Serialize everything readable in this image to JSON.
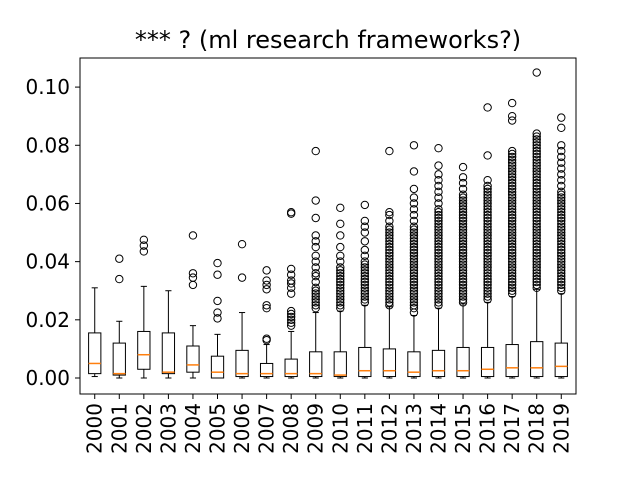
{
  "chart_data": {
    "type": "box",
    "title": "*** ? (ml research frameworks?)",
    "xlabel": "",
    "ylabel": "",
    "ylim": [
      -0.0055,
      0.11
    ],
    "yticks": [
      "0.00",
      "0.02",
      "0.04",
      "0.06",
      "0.08",
      "0.10"
    ],
    "ytick_values": [
      0.0,
      0.02,
      0.04,
      0.06,
      0.08,
      0.1
    ],
    "grid": false,
    "colors": {
      "box": "#000000",
      "median": "#ff7f0e",
      "flier": "#000000"
    },
    "categories": [
      "2000",
      "2001",
      "2002",
      "2003",
      "2004",
      "2005",
      "2006",
      "2007",
      "2008",
      "2009",
      "2010",
      "2011",
      "2012",
      "2013",
      "2014",
      "2015",
      "2016",
      "2017",
      "2018",
      "2019"
    ],
    "boxes": [
      {
        "year": "2000",
        "whislo": 0.0005,
        "q1": 0.0015,
        "med": 0.005,
        "q3": 0.0155,
        "whishi": 0.031,
        "fliers": []
      },
      {
        "year": "2001",
        "whislo": 0.0,
        "q1": 0.001,
        "med": 0.0015,
        "q3": 0.012,
        "whishi": 0.0195,
        "fliers": [
          0.034,
          0.041
        ]
      },
      {
        "year": "2002",
        "whislo": 0.0,
        "q1": 0.003,
        "med": 0.008,
        "q3": 0.016,
        "whishi": 0.0315,
        "fliers": [
          0.0435,
          0.0455,
          0.0475
        ]
      },
      {
        "year": "2003",
        "whislo": 0.0,
        "q1": 0.0015,
        "med": 0.002,
        "q3": 0.0155,
        "whishi": 0.03,
        "fliers": []
      },
      {
        "year": "2004",
        "whislo": 0.0,
        "q1": 0.002,
        "med": 0.0045,
        "q3": 0.011,
        "whishi": 0.018,
        "fliers": [
          0.032,
          0.0345,
          0.036,
          0.049
        ]
      },
      {
        "year": "2005",
        "whislo": 0.0,
        "q1": 0.0,
        "med": 0.002,
        "q3": 0.0075,
        "whishi": 0.015,
        "fliers": [
          0.0205,
          0.0225,
          0.0265,
          0.0355,
          0.0395
        ]
      },
      {
        "year": "2006",
        "whislo": 0.0,
        "q1": 0.0005,
        "med": 0.0015,
        "q3": 0.0095,
        "whishi": 0.0225,
        "fliers": [
          0.0345,
          0.046
        ]
      },
      {
        "year": "2007",
        "whislo": 0.0,
        "q1": 0.0005,
        "med": 0.0015,
        "q3": 0.005,
        "whishi": 0.0115,
        "fliers": [
          0.013,
          0.0135,
          0.024,
          0.025,
          0.0305,
          0.032,
          0.0335,
          0.037
        ]
      },
      {
        "year": "2008",
        "whislo": 0.0,
        "q1": 0.0005,
        "med": 0.0015,
        "q3": 0.0065,
        "whishi": 0.016,
        "fliers": [
          0.018,
          0.019,
          0.02,
          0.021,
          0.022,
          0.023,
          0.029,
          0.031,
          0.0325,
          0.0335,
          0.0355,
          0.0375,
          0.0565,
          0.057
        ]
      },
      {
        "year": "2009",
        "whislo": 0.0,
        "q1": 0.0005,
        "med": 0.0015,
        "q3": 0.009,
        "whishi": 0.0225,
        "fliers": [
          0.024,
          0.025,
          0.026,
          0.027,
          0.028,
          0.029,
          0.03,
          0.031,
          0.033,
          0.035,
          0.036,
          0.038,
          0.04,
          0.042,
          0.045,
          0.047,
          0.049,
          0.055,
          0.061,
          0.078
        ]
      },
      {
        "year": "2010",
        "whislo": 0.0,
        "q1": 0.0005,
        "med": 0.001,
        "q3": 0.009,
        "whishi": 0.023,
        "fliers": [
          0.024,
          0.025,
          0.026,
          0.027,
          0.028,
          0.029,
          0.03,
          0.031,
          0.032,
          0.033,
          0.034,
          0.035,
          0.036,
          0.037,
          0.038,
          0.04,
          0.042,
          0.045,
          0.049,
          0.053,
          0.0585
        ]
      },
      {
        "year": "2011",
        "whislo": 0.0,
        "q1": 0.0005,
        "med": 0.0025,
        "q3": 0.0105,
        "whishi": 0.025,
        "fliers": [
          0.026,
          0.027,
          0.028,
          0.029,
          0.03,
          0.031,
          0.032,
          0.033,
          0.034,
          0.035,
          0.036,
          0.037,
          0.038,
          0.039,
          0.04,
          0.042,
          0.044,
          0.047,
          0.05,
          0.052,
          0.054,
          0.0595
        ]
      },
      {
        "year": "2012",
        "whislo": 0.0,
        "q1": 0.0005,
        "med": 0.0025,
        "q3": 0.01,
        "whishi": 0.0245,
        "fliers": [
          0.025,
          0.026,
          0.027,
          0.028,
          0.029,
          0.03,
          0.031,
          0.032,
          0.033,
          0.034,
          0.035,
          0.036,
          0.037,
          0.038,
          0.039,
          0.04,
          0.041,
          0.042,
          0.043,
          0.044,
          0.045,
          0.046,
          0.047,
          0.048,
          0.049,
          0.05,
          0.051,
          0.052,
          0.054,
          0.056,
          0.057,
          0.078
        ]
      },
      {
        "year": "2013",
        "whislo": 0.0,
        "q1": 0.0005,
        "med": 0.002,
        "q3": 0.009,
        "whishi": 0.0215,
        "fliers": [
          0.0225,
          0.024,
          0.025,
          0.026,
          0.027,
          0.028,
          0.029,
          0.03,
          0.031,
          0.032,
          0.033,
          0.034,
          0.035,
          0.036,
          0.037,
          0.038,
          0.039,
          0.04,
          0.041,
          0.042,
          0.043,
          0.044,
          0.045,
          0.046,
          0.047,
          0.048,
          0.049,
          0.05,
          0.051,
          0.052,
          0.054,
          0.056,
          0.058,
          0.06,
          0.062,
          0.065,
          0.071,
          0.08
        ]
      },
      {
        "year": "2014",
        "whislo": 0.0,
        "q1": 0.0005,
        "med": 0.0025,
        "q3": 0.0095,
        "whishi": 0.024,
        "fliers": [
          0.025,
          0.026,
          0.027,
          0.028,
          0.029,
          0.03,
          0.031,
          0.032,
          0.033,
          0.034,
          0.035,
          0.036,
          0.037,
          0.038,
          0.039,
          0.04,
          0.041,
          0.042,
          0.043,
          0.044,
          0.045,
          0.046,
          0.047,
          0.048,
          0.049,
          0.05,
          0.051,
          0.052,
          0.053,
          0.054,
          0.055,
          0.056,
          0.057,
          0.058,
          0.06,
          0.062,
          0.064,
          0.066,
          0.068,
          0.07,
          0.073,
          0.079
        ]
      },
      {
        "year": "2015",
        "whislo": 0.0,
        "q1": 0.0005,
        "med": 0.0025,
        "q3": 0.0105,
        "whishi": 0.0255,
        "fliers": [
          0.026,
          0.027,
          0.028,
          0.029,
          0.03,
          0.031,
          0.032,
          0.033,
          0.034,
          0.035,
          0.036,
          0.037,
          0.038,
          0.039,
          0.04,
          0.041,
          0.042,
          0.043,
          0.044,
          0.045,
          0.046,
          0.047,
          0.048,
          0.049,
          0.05,
          0.051,
          0.052,
          0.053,
          0.054,
          0.055,
          0.056,
          0.057,
          0.058,
          0.059,
          0.06,
          0.061,
          0.062,
          0.063,
          0.065,
          0.067,
          0.069,
          0.0725
        ]
      },
      {
        "year": "2016",
        "whislo": 0.0,
        "q1": 0.0005,
        "med": 0.003,
        "q3": 0.0105,
        "whishi": 0.026,
        "fliers": [
          0.027,
          0.028,
          0.029,
          0.03,
          0.031,
          0.032,
          0.033,
          0.034,
          0.035,
          0.036,
          0.037,
          0.038,
          0.039,
          0.04,
          0.041,
          0.042,
          0.043,
          0.044,
          0.045,
          0.046,
          0.047,
          0.048,
          0.049,
          0.05,
          0.051,
          0.052,
          0.053,
          0.054,
          0.055,
          0.056,
          0.057,
          0.058,
          0.059,
          0.06,
          0.061,
          0.062,
          0.063,
          0.064,
          0.065,
          0.066,
          0.068,
          0.0765,
          0.093
        ]
      },
      {
        "year": "2017",
        "whislo": 0.0,
        "q1": 0.0005,
        "med": 0.0035,
        "q3": 0.0115,
        "whishi": 0.028,
        "fliers": [
          0.029,
          0.03,
          0.031,
          0.032,
          0.033,
          0.034,
          0.035,
          0.036,
          0.037,
          0.038,
          0.039,
          0.04,
          0.041,
          0.042,
          0.043,
          0.044,
          0.045,
          0.046,
          0.047,
          0.048,
          0.049,
          0.05,
          0.051,
          0.052,
          0.053,
          0.054,
          0.055,
          0.056,
          0.057,
          0.058,
          0.059,
          0.06,
          0.061,
          0.062,
          0.063,
          0.064,
          0.065,
          0.066,
          0.067,
          0.068,
          0.069,
          0.07,
          0.071,
          0.072,
          0.073,
          0.074,
          0.075,
          0.076,
          0.077,
          0.078,
          0.0885,
          0.09,
          0.0945
        ]
      },
      {
        "year": "2018",
        "whislo": 0.0,
        "q1": 0.0005,
        "med": 0.0035,
        "q3": 0.0125,
        "whishi": 0.0305,
        "fliers": [
          0.031,
          0.032,
          0.033,
          0.034,
          0.035,
          0.036,
          0.037,
          0.038,
          0.039,
          0.04,
          0.041,
          0.042,
          0.043,
          0.044,
          0.045,
          0.046,
          0.047,
          0.048,
          0.049,
          0.05,
          0.051,
          0.052,
          0.053,
          0.054,
          0.055,
          0.056,
          0.057,
          0.058,
          0.059,
          0.06,
          0.061,
          0.062,
          0.063,
          0.064,
          0.065,
          0.066,
          0.067,
          0.068,
          0.069,
          0.07,
          0.071,
          0.072,
          0.073,
          0.074,
          0.075,
          0.076,
          0.077,
          0.078,
          0.079,
          0.08,
          0.081,
          0.082,
          0.083,
          0.084,
          0.105
        ]
      },
      {
        "year": "2019",
        "whislo": 0.0,
        "q1": 0.0005,
        "med": 0.004,
        "q3": 0.012,
        "whishi": 0.029,
        "fliers": [
          0.03,
          0.031,
          0.032,
          0.033,
          0.034,
          0.035,
          0.036,
          0.037,
          0.038,
          0.039,
          0.04,
          0.041,
          0.042,
          0.043,
          0.044,
          0.045,
          0.046,
          0.047,
          0.048,
          0.049,
          0.05,
          0.051,
          0.052,
          0.053,
          0.054,
          0.055,
          0.056,
          0.057,
          0.058,
          0.059,
          0.06,
          0.061,
          0.062,
          0.063,
          0.064,
          0.066,
          0.068,
          0.07,
          0.072,
          0.074,
          0.076,
          0.078,
          0.08,
          0.086,
          0.0895
        ]
      }
    ]
  }
}
